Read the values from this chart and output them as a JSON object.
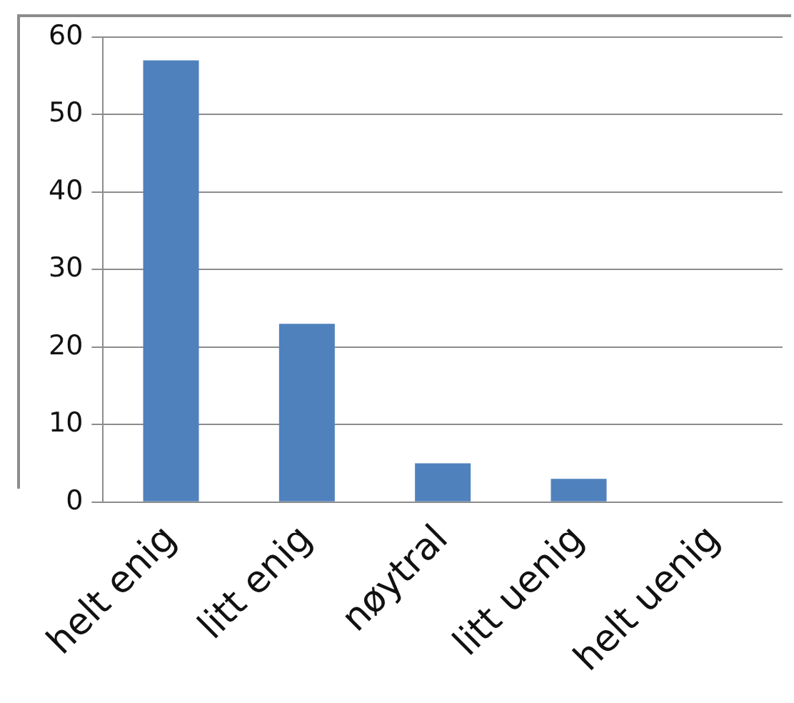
{
  "chart_data": {
    "type": "bar",
    "categories": [
      "helt enig",
      "litt enig",
      "nøytral",
      "litt uenig",
      "helt uenig"
    ],
    "values": [
      57,
      23,
      5,
      3,
      0
    ],
    "color": "#4f81bd",
    "ylim": [
      0,
      60
    ],
    "yticks": [
      0,
      10,
      20,
      30,
      40,
      50,
      60
    ],
    "grid": "y",
    "legend": false
  }
}
